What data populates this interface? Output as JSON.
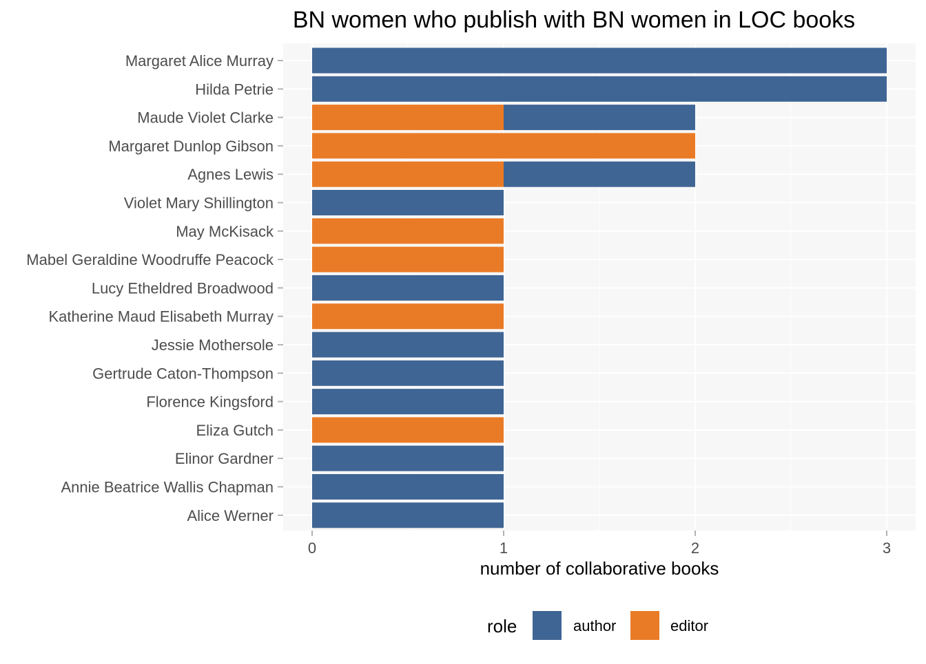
{
  "chart_data": {
    "type": "bar",
    "orientation": "horizontal",
    "stacked": true,
    "title": "BN women who publish with BN women in LOC books",
    "xlabel": "number of collaborative books",
    "ylabel": "",
    "xlim": [
      0,
      3
    ],
    "x_ticks": [
      0,
      1,
      2,
      3
    ],
    "grid": true,
    "legend_position": "bottom",
    "legend_title": "role",
    "categories": [
      "Margaret Alice Murray",
      "Hilda Petrie",
      "Maude Violet Clarke",
      "Margaret Dunlop Gibson",
      "Agnes Lewis",
      "Violet Mary Shillington",
      "May McKisack",
      "Mabel Geraldine Woodruffe Peacock",
      "Lucy Etheldred Broadwood",
      "Katherine Maud Elisabeth Murray",
      "Jessie Mothersole",
      "Gertrude Caton-Thompson",
      "Florence Kingsford",
      "Eliza Gutch",
      "Elinor Gardner",
      "Annie Beatrice Wallis Chapman",
      "Alice Werner"
    ],
    "series": [
      {
        "name": "editor",
        "color": "#ea7b26",
        "values": [
          0,
          0,
          1,
          2,
          1,
          0,
          1,
          1,
          0,
          1,
          0,
          0,
          0,
          1,
          0,
          0,
          0
        ]
      },
      {
        "name": "author",
        "color": "#3f6594",
        "values": [
          3,
          3,
          1,
          0,
          1,
          1,
          0,
          0,
          1,
          0,
          1,
          1,
          1,
          0,
          1,
          1,
          1
        ]
      }
    ],
    "legend_order": [
      "author",
      "editor"
    ],
    "panel_background": "#f7f7f7",
    "grid_color": "#ffffff"
  }
}
